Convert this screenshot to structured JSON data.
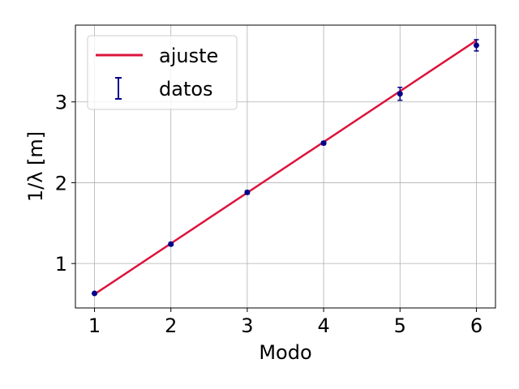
{
  "chart_data": {
    "type": "scatter",
    "title": "",
    "xlabel": "Modo",
    "ylabel": "1/λ [m]",
    "xlim": [
      0.75,
      6.25
    ],
    "ylim": [
      0.45,
      3.95
    ],
    "xticks": [
      1,
      2,
      3,
      4,
      5,
      6
    ],
    "yticks": [
      1,
      2,
      3
    ],
    "grid": true,
    "legend_position": "top-left",
    "series": [
      {
        "name": "ajuste",
        "kind": "line",
        "color": "#dc143c",
        "x": [
          1,
          6
        ],
        "y": [
          0.62,
          3.76
        ]
      },
      {
        "name": "datos",
        "kind": "errorbar",
        "color": "#00008b",
        "x": [
          1,
          2,
          3,
          4,
          5,
          6
        ],
        "y": [
          0.63,
          1.24,
          1.88,
          2.49,
          3.1,
          3.7
        ],
        "yerr": [
          0.01,
          0.02,
          0.02,
          0.02,
          0.08,
          0.07
        ]
      }
    ]
  }
}
